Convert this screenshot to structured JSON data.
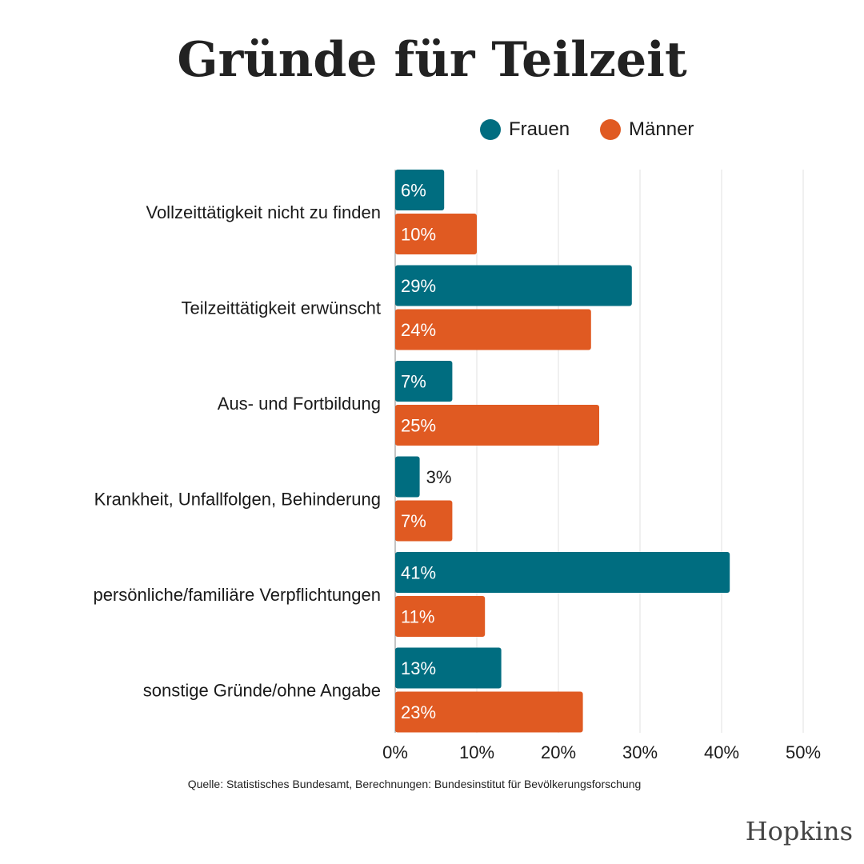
{
  "chart_data": {
    "type": "bar",
    "orientation": "horizontal",
    "title": "Gründe für Teilzeit",
    "categories": [
      "Vollzeittätigkeit nicht zu finden",
      "Teilzeittätigkeit erwünscht",
      "Aus- und Fortbildung",
      "Krankheit, Unfallfolgen, Behinderung",
      "persönliche/familiäre Verpflichtungen",
      "sonstige Gründe/ohne Angabe"
    ],
    "series": [
      {
        "name": "Frauen",
        "color": "#006d80",
        "values": [
          6,
          29,
          7,
          3,
          41,
          13
        ]
      },
      {
        "name": "Männer",
        "color": "#e05a22",
        "values": [
          10,
          24,
          25,
          7,
          11,
          23
        ]
      }
    ],
    "value_suffix": "%",
    "xlim": [
      0,
      50
    ],
    "xticks": [
      "0%",
      "10%",
      "20%",
      "30%",
      "40%",
      "50%"
    ],
    "grid": true,
    "legend_position": "top-right"
  },
  "source": "Quelle: Statistisches Bundesamt, Berechnungen: Bundesinstitut für Bevölkerungsforschung",
  "brand": "Hopkins"
}
